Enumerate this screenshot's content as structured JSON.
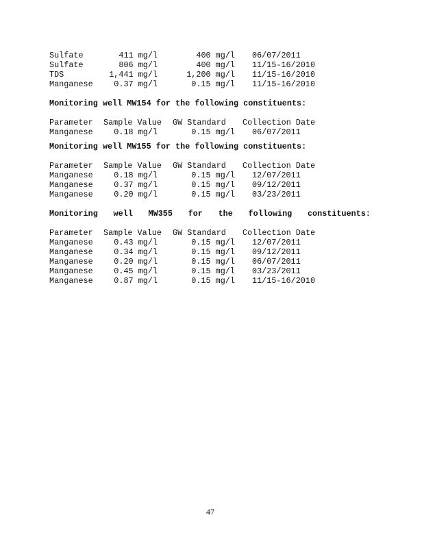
{
  "continued_rows": [
    {
      "parameter": "Sulfate",
      "value": "411 mg/l",
      "standard": "400 mg/l",
      "date": "06/07/2011"
    },
    {
      "parameter": "Sulfate",
      "value": "806 mg/l",
      "standard": "400 mg/l",
      "date": "11/15-16/2010"
    },
    {
      "parameter": "TDS",
      "value": "1,441 mg/l",
      "standard": "1,200 mg/l",
      "date": "11/15-16/2010"
    },
    {
      "parameter": "Manganese",
      "value": "0.37 mg/l",
      "standard": "0.15 mg/l",
      "date": "11/15-16/2010"
    }
  ],
  "columns": [
    "Parameter",
    "Sample Value",
    "GW Standard",
    "Collection Date"
  ],
  "sections": [
    {
      "heading": "Monitoring well MW154 for the following constituents:",
      "justified": false,
      "rows": [
        {
          "parameter": "Manganese",
          "value": "0.18 mg/l",
          "standard": "0.15 mg/l",
          "date": "06/07/2011"
        }
      ]
    },
    {
      "heading": "Monitoring well MW155 for the following constituents:",
      "justified": false,
      "rows": [
        {
          "parameter": "Manganese",
          "value": "0.18 mg/l",
          "standard": "0.15 mg/l",
          "date": "12/07/2011"
        },
        {
          "parameter": "Manganese",
          "value": "0.37 mg/l",
          "standard": "0.15 mg/l",
          "date": "09/12/2011"
        },
        {
          "parameter": "Manganese",
          "value": "0.20 mg/l",
          "standard": "0.15 mg/l",
          "date": "03/23/2011"
        }
      ]
    },
    {
      "heading": "Monitoring well MW355 for the following constituents:",
      "justified": true,
      "rows": [
        {
          "parameter": "Manganese",
          "value": "0.43 mg/l",
          "standard": "0.15 mg/l",
          "date": "12/07/2011"
        },
        {
          "parameter": "Manganese",
          "value": "0.34 mg/l",
          "standard": "0.15 mg/l",
          "date": "09/12/2011"
        },
        {
          "parameter": "Manganese",
          "value": "0.20 mg/l",
          "standard": "0.15 mg/l",
          "date": "06/07/2011"
        },
        {
          "parameter": "Manganese",
          "value": "0.45 mg/l",
          "standard": "0.15 mg/l",
          "date": "03/23/2011"
        },
        {
          "parameter": "Manganese",
          "value": "0.87 mg/l",
          "standard": "0.15 mg/l",
          "date": "11/15-16/2010"
        }
      ]
    }
  ],
  "page_number": "47"
}
